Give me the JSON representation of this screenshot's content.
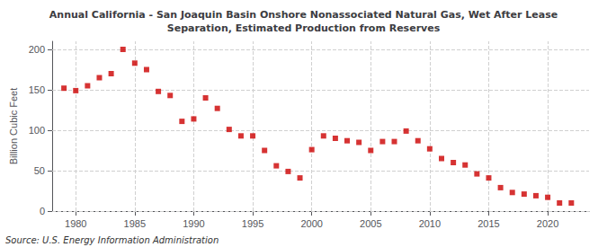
{
  "chart_data": {
    "type": "scatter",
    "title": "Annual California - San Joaquin Basin Onshore Nonassociated Natural Gas, Wet After Lease\nSeparation, Estimated Production from Reserves",
    "ylabel": "Billion Cubic Feet",
    "source": "Source: U.S. Energy Information Administration",
    "x": [
      1979,
      1980,
      1981,
      1982,
      1983,
      1984,
      1985,
      1986,
      1987,
      1988,
      1989,
      1990,
      1991,
      1992,
      1993,
      1994,
      1995,
      1996,
      1997,
      1998,
      1999,
      2000,
      2001,
      2002,
      2003,
      2004,
      2005,
      2006,
      2007,
      2008,
      2009,
      2010,
      2011,
      2012,
      2013,
      2014,
      2015,
      2016,
      2017,
      2018,
      2019,
      2020,
      2021,
      2022
    ],
    "values": [
      152,
      149,
      155,
      165,
      170,
      200,
      183,
      175,
      148,
      143,
      111,
      114,
      140,
      127,
      101,
      93,
      93,
      75,
      56,
      49,
      41,
      76,
      93,
      90,
      87,
      85,
      75,
      86,
      86,
      99,
      87,
      77,
      65,
      60,
      57,
      46,
      41,
      29,
      23,
      21,
      19,
      17,
      10,
      10
    ],
    "color": "#cc0000",
    "marker": "square",
    "xlim": [
      1978.0,
      2023.5
    ],
    "xticks": [
      1980,
      1985,
      1990,
      1995,
      2000,
      2005,
      2010,
      2015,
      2020
    ],
    "ylim": [
      0,
      210
    ],
    "yticks": [
      0,
      50,
      100,
      150,
      200
    ],
    "grid": true
  }
}
